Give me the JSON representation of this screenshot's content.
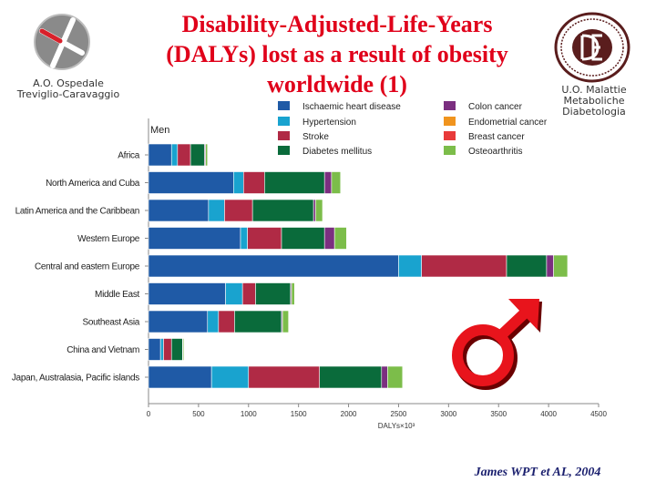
{
  "slide": {
    "title_lines": [
      "Disability-Adjusted-Life-Years",
      "(DALYs) lost as a result of obesity",
      "worldwide (1)"
    ],
    "hospital_lines": [
      "A.O. Ospedale",
      "Treviglio-Caravaggio"
    ],
    "unit_lines": [
      "U.O. Malattie",
      "Metaboliche",
      "Diabetologia"
    ],
    "citation": "James WPT et AL, 2004",
    "colors": {
      "title": "#e0001a",
      "citation": "#1a1f6e",
      "male_symbol": "#e8141c"
    },
    "icons": {
      "left_logo": "cross-logo-icon",
      "right_logo": "diabetology-seal-icon",
      "symbol": "male-symbol-icon"
    }
  },
  "chart_data": {
    "type": "bar",
    "orientation": "horizontal",
    "stacked": true,
    "title": "Men",
    "xlabel": "DALYs×10³",
    "ylabel": "",
    "xlim": [
      0,
      4500
    ],
    "xticks": [
      0,
      500,
      1000,
      1500,
      2000,
      2500,
      3000,
      3500,
      4000,
      4500
    ],
    "grid": false,
    "legend_position": "top",
    "categories": [
      "Africa",
      "North America and Cuba",
      "Latin America and the Caribbean",
      "Western Europe",
      "Central and eastern Europe",
      "Middle East",
      "Southeast Asia",
      "China and Vietnam",
      "Japan, Australasia, Pacific islands"
    ],
    "series": [
      {
        "name": "Ischaemic heart disease",
        "color": "#1f5aa6",
        "values": [
          230,
          850,
          600,
          920,
          2500,
          770,
          590,
          120,
          630
        ]
      },
      {
        "name": "Hypertension",
        "color": "#19a3cf",
        "values": [
          60,
          100,
          160,
          70,
          230,
          170,
          110,
          30,
          370
        ]
      },
      {
        "name": "Stroke",
        "color": "#b02a45",
        "values": [
          130,
          210,
          280,
          340,
          850,
          130,
          160,
          80,
          710
        ]
      },
      {
        "name": "Diabetes mellitus",
        "color": "#0a6b3b",
        "values": [
          140,
          600,
          610,
          430,
          400,
          350,
          470,
          110,
          620
        ]
      },
      {
        "name": "Colon cancer",
        "color": "#7b2f80",
        "values": [
          10,
          70,
          20,
          100,
          70,
          10,
          10,
          5,
          60
        ]
      },
      {
        "name": "Endometrial cancer",
        "color": "#f0941e",
        "values": [
          0,
          0,
          0,
          0,
          0,
          0,
          0,
          0,
          0
        ]
      },
      {
        "name": "Breast cancer",
        "color": "#e83a3a",
        "values": [
          0,
          0,
          0,
          0,
          0,
          0,
          0,
          0,
          0
        ]
      },
      {
        "name": "Osteoarthritis",
        "color": "#7cbd4a",
        "values": [
          20,
          90,
          70,
          120,
          140,
          30,
          60,
          10,
          150
        ]
      }
    ]
  }
}
